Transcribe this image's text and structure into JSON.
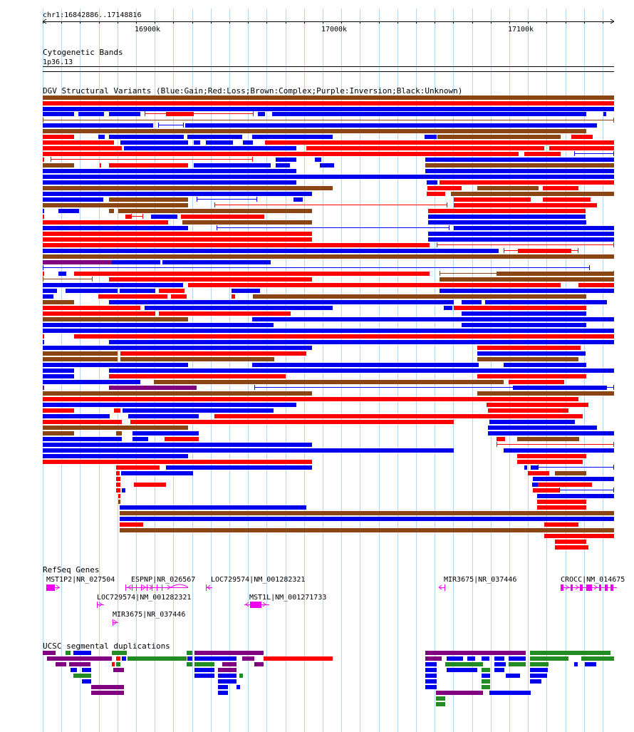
{
  "position": "chr1:16842886..17148816",
  "ruler_ticks": [
    "16900k",
    "17000k",
    "17100k"
  ],
  "tracks": {
    "cytoband_title": "Cytogenetic Bands",
    "cytoband_label": "1p36.13",
    "dgv_title": "DGV Structural Variants (Blue:Gain;Red:Loss;Brown:Complex;Purple:Inversion;Black:Unknown)",
    "refseq_title": "RefSeq Genes",
    "segdup_title": "UCSC segmental duplications"
  },
  "colors": {
    "gain": "#0000ee",
    "loss": "#ff0000",
    "complex": "#8b4513",
    "inversion": "#800080",
    "gene": "#ee00ee",
    "segdup_purple": "#800080",
    "segdup_green": "#228b22",
    "segdup_red": "#ff0000",
    "segdup_blue": "#0000ee",
    "grid": "#b4d7eb"
  },
  "genes": [
    {
      "label": "MST1P2|NR_027504"
    },
    {
      "label": "ESPNP|NR_026567"
    },
    {
      "label": "LOC729574|NM_001282321"
    },
    {
      "label": "MIR3675|NR_037446"
    },
    {
      "label": "CROCC|NM_014675"
    },
    {
      "label": "LOC729574|NM_001282321"
    },
    {
      "label": "MST1L|NM_001271733"
    },
    {
      "label": "MIR3675|NR_037446"
    }
  ]
}
